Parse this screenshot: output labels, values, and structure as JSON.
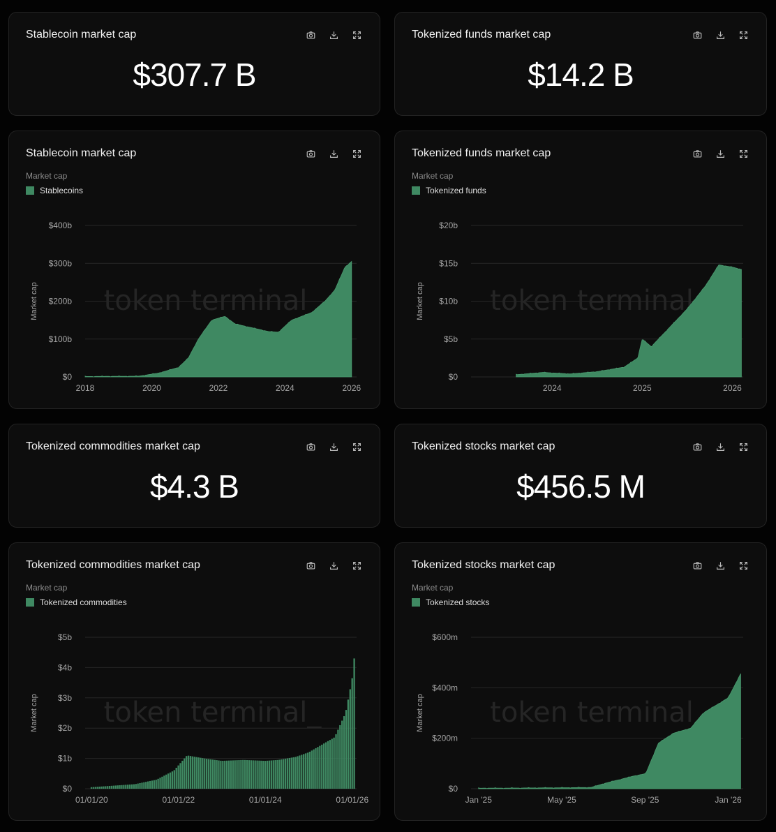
{
  "kpis": [
    {
      "title": "Stablecoin market cap",
      "value": "$307.7 B"
    },
    {
      "title": "Tokenized funds market cap",
      "value": "$14.2 B"
    },
    {
      "title": "Tokenized commodities market cap",
      "value": "$4.3 B"
    },
    {
      "title": "Tokenized stocks market cap",
      "value": "$456.5 M"
    }
  ],
  "icons": [
    "camera-icon",
    "download-icon",
    "expand-icon"
  ],
  "watermark": "token terminal_",
  "colors": {
    "fill": "#3f8962",
    "line": "#4a9a6f",
    "grid": "#262626"
  },
  "chart_data": [
    {
      "title": "Stablecoin market cap",
      "subtitle": "Market cap",
      "type": "area",
      "ylabel": "Market cap",
      "legend": "top-left",
      "x_tick_labels": [
        "2018",
        "2020",
        "2022",
        "2024",
        "2026"
      ],
      "y_tick_labels": [
        "$0",
        "$100b",
        "$200b",
        "$300b",
        "$400b"
      ],
      "xlim": [
        2018,
        2026.15
      ],
      "ylim": [
        0,
        400
      ],
      "series": [
        {
          "name": "Stablecoins",
          "x": [
            2018,
            2019.6,
            2020.2,
            2020.8,
            2021.1,
            2021.4,
            2021.8,
            2022.2,
            2022.5,
            2023.0,
            2023.5,
            2023.8,
            2024.2,
            2024.8,
            2025.2,
            2025.5,
            2025.8,
            2026.0
          ],
          "y": [
            1,
            2,
            10,
            25,
            50,
            100,
            150,
            160,
            140,
            130,
            120,
            118,
            150,
            170,
            200,
            230,
            290,
            305
          ]
        }
      ]
    },
    {
      "title": "Tokenized funds market cap",
      "subtitle": "Market cap",
      "type": "area",
      "ylabel": "Market cap",
      "legend": "top-left",
      "x_tick_labels": [
        "2024",
        "2025",
        "2026"
      ],
      "y_tick_labels": [
        "$0",
        "$5b",
        "$10b",
        "$15b",
        "$20b"
      ],
      "xlim": [
        2023.1,
        2026.12
      ],
      "ylim": [
        0,
        20
      ],
      "series": [
        {
          "name": "Tokenized funds",
          "x": [
            2023.6,
            2023.9,
            2024.2,
            2024.5,
            2024.8,
            2024.95,
            2025.0,
            2025.1,
            2025.3,
            2025.5,
            2025.7,
            2025.85,
            2026.0,
            2026.1
          ],
          "y": [
            0.3,
            0.6,
            0.4,
            0.7,
            1.3,
            2.5,
            5.0,
            4.0,
            6.5,
            9.0,
            12.0,
            14.8,
            14.5,
            14.2
          ]
        }
      ]
    },
    {
      "title": "Tokenized commodities market cap",
      "subtitle": "Market cap",
      "type": "bar",
      "ylabel": "Market cap",
      "legend": "top-left",
      "x_tick_labels": [
        "01/01/20",
        "01/01/22",
        "01/01/24",
        "01/01/26"
      ],
      "y_tick_labels": [
        "$0",
        "$1b",
        "$2b",
        "$3b",
        "$4b",
        "$5b"
      ],
      "xlim": [
        2019.85,
        2026.1
      ],
      "ylim": [
        0,
        5
      ],
      "series": [
        {
          "name": "Tokenized commodities",
          "x": [
            2020.0,
            2020.5,
            2021.0,
            2021.5,
            2021.9,
            2022.2,
            2022.6,
            2023.0,
            2023.5,
            2024.0,
            2024.3,
            2024.7,
            2025.0,
            2025.3,
            2025.6,
            2025.85,
            2026.0,
            2026.05
          ],
          "y": [
            0.05,
            0.1,
            0.15,
            0.3,
            0.6,
            1.1,
            1.0,
            0.92,
            0.95,
            0.92,
            0.95,
            1.05,
            1.2,
            1.45,
            1.7,
            2.5,
            3.6,
            4.3
          ]
        }
      ]
    },
    {
      "title": "Tokenized stocks market cap",
      "subtitle": "Market cap",
      "type": "area",
      "ylabel": "Market cap",
      "legend": "top-left",
      "x_tick_labels": [
        "Jan '25",
        "May '25",
        "Sep '25",
        "Jan '26"
      ],
      "y_tick_labels": [
        "$0",
        "$200m",
        "$400m",
        "$600m"
      ],
      "xlim": [
        2024.97,
        2026.06
      ],
      "ylim": [
        0,
        600
      ],
      "series": [
        {
          "name": "Tokenized stocks",
          "x": [
            2025.0,
            2025.2,
            2025.45,
            2025.5,
            2025.58,
            2025.62,
            2025.67,
            2025.72,
            2025.78,
            2025.85,
            2025.9,
            2025.95,
            2026.0,
            2026.05
          ],
          "y": [
            2,
            3,
            5,
            20,
            40,
            50,
            60,
            180,
            220,
            240,
            300,
            330,
            360,
            456
          ]
        }
      ]
    }
  ]
}
